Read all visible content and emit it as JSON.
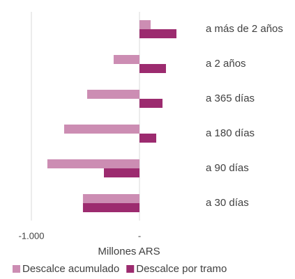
{
  "chart_data": {
    "type": "hbar",
    "categories": [
      "a más de 2 años",
      "a 2 años",
      "a 365 días",
      "a 180 días",
      "a 90 días",
      "a 30 días"
    ],
    "series": [
      {
        "name": "Descalce acumulado",
        "color": "#cc8db3",
        "values": [
          103,
          -239,
          -484,
          -697,
          -852,
          -523
        ]
      },
      {
        "name": "Descalce por tramo",
        "color": "#9c2b6f",
        "values": [
          342,
          245,
          213,
          155,
          -329,
          -523
        ]
      }
    ],
    "xlim": [
      -1000,
      600
    ],
    "xticks": [
      {
        "value": -1000,
        "label": "-1.000"
      },
      {
        "value": 0,
        "label": "-"
      }
    ],
    "xlabel": "Millones ARS",
    "grid": true,
    "legend": "bottom"
  }
}
